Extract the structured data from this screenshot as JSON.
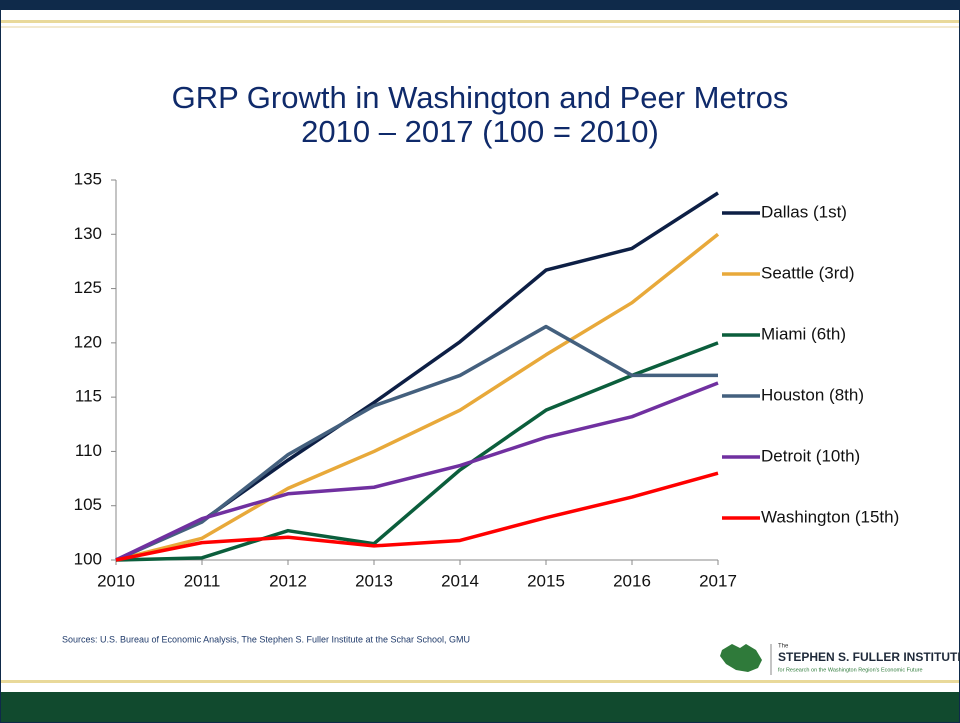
{
  "chart_data": {
    "type": "line",
    "title": "GRP Growth in Washington and Peer Metros",
    "subtitle": "2010 – 2017 (100 = 2010)",
    "x": [
      2010,
      2011,
      2012,
      2013,
      2014,
      2015,
      2016,
      2017
    ],
    "xlim": [
      2010,
      2017
    ],
    "xticks": [
      2010,
      2011,
      2012,
      2013,
      2014,
      2015,
      2016,
      2017
    ],
    "ylim": [
      100,
      135
    ],
    "yticks": [
      100,
      105,
      110,
      115,
      120,
      125,
      130,
      135
    ],
    "series": [
      {
        "name": "Dallas (1st)",
        "color": "#0d1f45",
        "values": [
          100,
          103.6,
          109.2,
          114.5,
          120.1,
          126.7,
          128.7,
          133.8
        ]
      },
      {
        "name": "Seattle (3rd)",
        "color": "#e8a93a",
        "values": [
          100,
          102,
          106.6,
          110,
          113.8,
          118.9,
          123.7,
          130
        ]
      },
      {
        "name": "Miami (6th)",
        "color": "#0b5e3c",
        "values": [
          100,
          100.2,
          102.7,
          101.5,
          108.3,
          113.8,
          117,
          120
        ]
      },
      {
        "name": "Houston (8th)",
        "color": "#44607e",
        "values": [
          100,
          103.5,
          109.7,
          114.2,
          117,
          121.5,
          117,
          117
        ]
      },
      {
        "name": "Detroit (10th)",
        "color": "#7030a0",
        "values": [
          100,
          103.8,
          106.1,
          106.7,
          108.7,
          111.3,
          113.2,
          116.3
        ]
      },
      {
        "name": "Washington (15th)",
        "color": "#ff0000",
        "values": [
          100,
          101.6,
          102.1,
          101.3,
          101.8,
          103.9,
          105.8,
          108
        ]
      }
    ]
  },
  "source": "Sources: U.S. Bureau of Economic Analysis, The Stephen S. Fuller Institute at the Schar School, GMU",
  "logo": {
    "small": "The",
    "name": "STEPHEN S. FULLER INSTITUTE",
    "tagline": "for Research on the Washington Region's Economic Future"
  }
}
